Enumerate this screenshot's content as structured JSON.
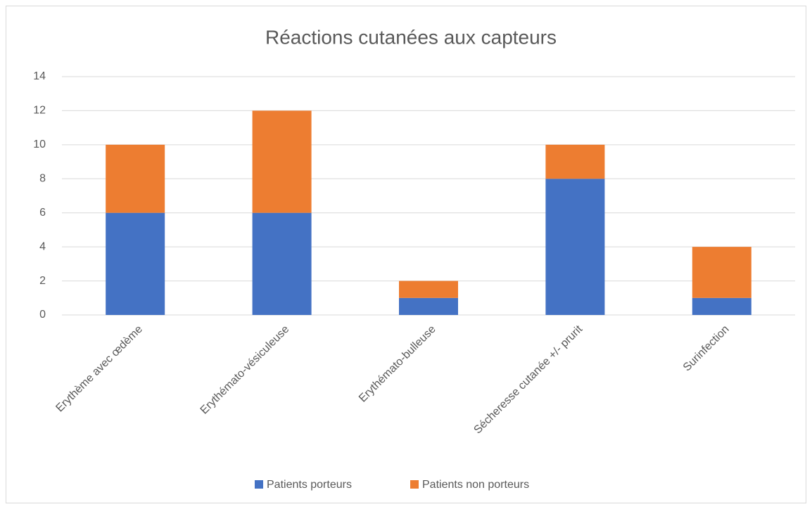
{
  "chart_data": {
    "type": "bar",
    "stacked": true,
    "title": "Réactions cutanées aux capteurs",
    "categories": [
      "Erythème avec œdème",
      "Erythémato-vésiculeuse",
      "Erythémato-bulleuse",
      "Sécheresse cutanée +/- prurit",
      "Surinfection"
    ],
    "series": [
      {
        "name": "Patients porteurs",
        "color": "#4472c4",
        "values": [
          6,
          6,
          1,
          8,
          1
        ]
      },
      {
        "name": "Patients non porteurs",
        "color": "#ed7d31",
        "values": [
          4,
          6,
          1,
          2,
          3
        ]
      }
    ],
    "ylim": [
      0,
      14
    ],
    "yticks": [
      0,
      2,
      4,
      6,
      8,
      10,
      12,
      14
    ],
    "grid": true,
    "legend": "bottom"
  }
}
